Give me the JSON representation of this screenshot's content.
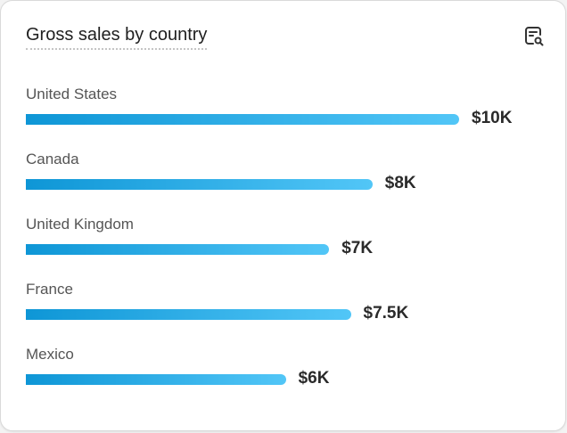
{
  "chart_data": {
    "type": "bar",
    "orientation": "horizontal",
    "title": "Gross sales by country",
    "categories": [
      "United States",
      "Canada",
      "United Kingdom",
      "France",
      "Mexico"
    ],
    "values": [
      10000,
      8000,
      7000,
      7500,
      6000
    ],
    "value_labels": [
      "$10K",
      "$8K",
      "$7K",
      "$7.5K",
      "$6K"
    ],
    "bar_color_start": "#0e96d6",
    "bar_color_end": "#52c6f7",
    "grid": false
  },
  "header": {
    "icon": "report-search-icon"
  }
}
